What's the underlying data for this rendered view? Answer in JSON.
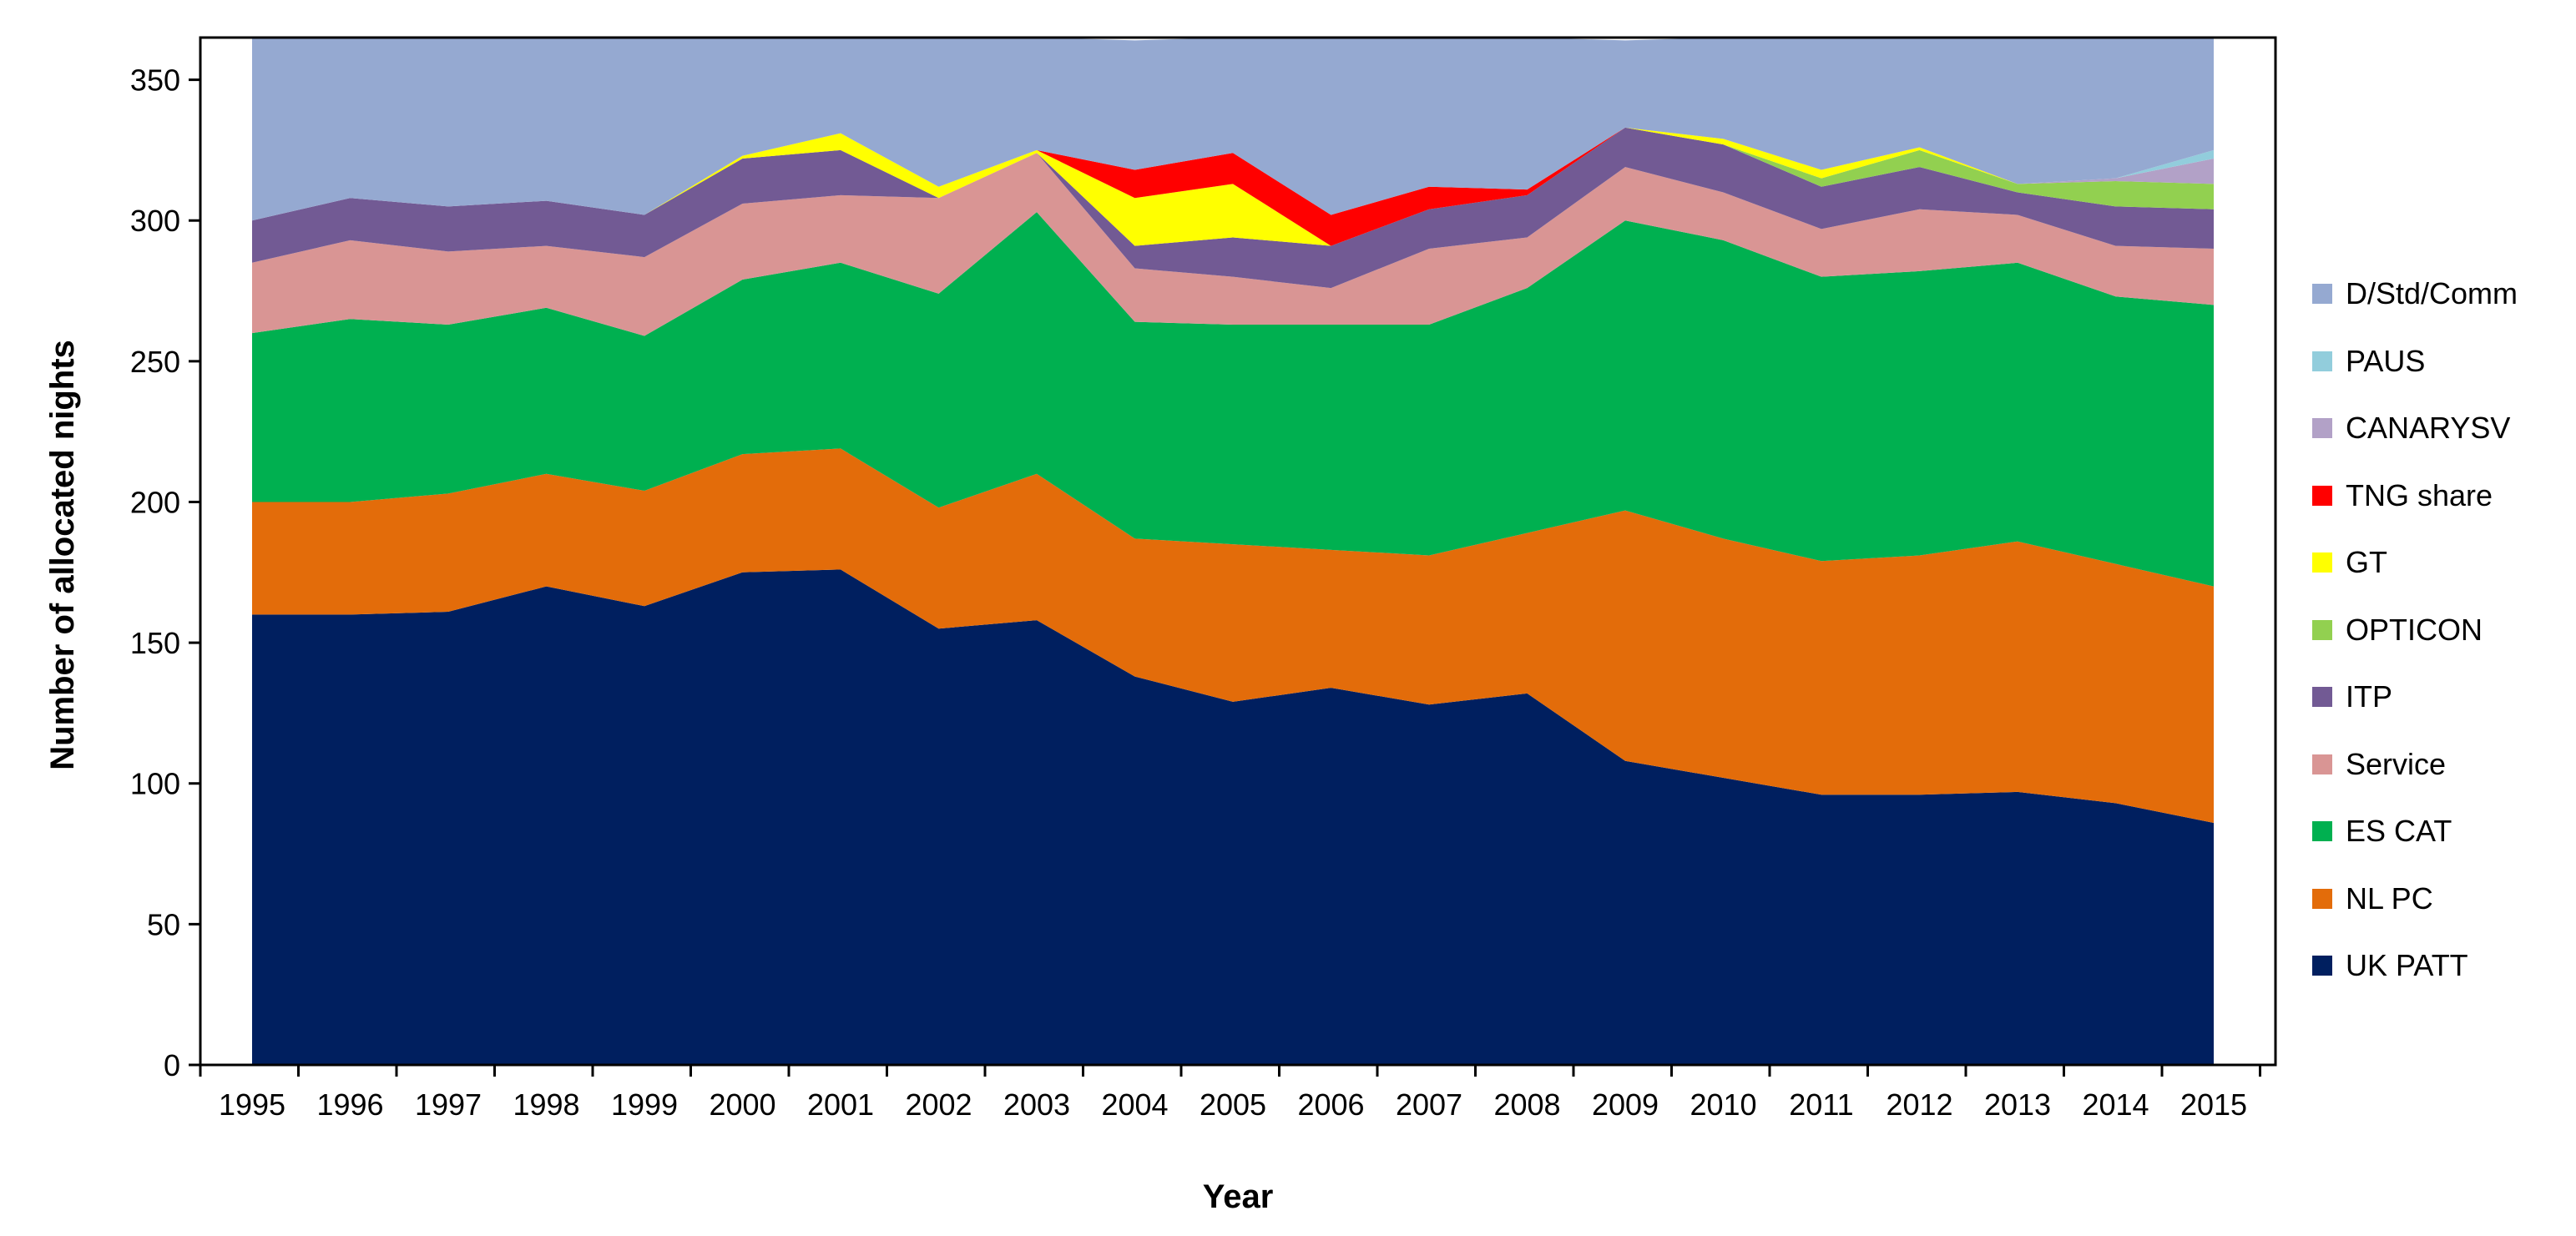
{
  "chart_data": {
    "type": "area",
    "stacked": true,
    "title": "",
    "xlabel": "Year",
    "ylabel": "Number of allocated nights",
    "ylim": [
      0,
      365
    ],
    "yticks": [
      0,
      50,
      100,
      150,
      200,
      250,
      300,
      350
    ],
    "grid": false,
    "legend_position": "right",
    "x": [
      "1995",
      "1996",
      "1997",
      "1998",
      "1999",
      "2000",
      "2001",
      "2002",
      "2003",
      "2004",
      "2005",
      "2006",
      "2007",
      "2008",
      "2009",
      "2010",
      "2011",
      "2012",
      "2013",
      "2014",
      "2015"
    ],
    "series": [
      {
        "name": "UK PATT",
        "color": "#001F5F",
        "values": [
          160,
          160,
          161,
          170,
          163,
          175,
          176,
          155,
          158,
          138,
          129,
          134,
          128,
          132,
          108,
          102,
          96,
          96,
          97,
          93,
          86
        ]
      },
      {
        "name": "NL PC",
        "color": "#E36C0A",
        "values": [
          40,
          40,
          42,
          40,
          41,
          42,
          43,
          43,
          52,
          49,
          56,
          49,
          53,
          57,
          89,
          85,
          83,
          85,
          89,
          85,
          84
        ]
      },
      {
        "name": "ES CAT",
        "color": "#00B050",
        "values": [
          60,
          65,
          60,
          59,
          55,
          62,
          66,
          76,
          93,
          77,
          78,
          80,
          82,
          87,
          103,
          106,
          101,
          101,
          99,
          95,
          100
        ]
      },
      {
        "name": "Service",
        "color": "#D99594",
        "values": [
          25,
          28,
          26,
          22,
          28,
          27,
          24,
          34,
          21,
          19,
          17,
          13,
          27,
          18,
          19,
          17,
          17,
          22,
          17,
          18,
          20
        ]
      },
      {
        "name": "ITP",
        "color": "#725A94",
        "values": [
          15,
          15,
          16,
          16,
          15,
          16,
          16,
          0,
          0,
          8,
          14,
          15,
          14,
          15,
          14,
          17,
          15,
          15,
          8,
          14,
          14
        ]
      },
      {
        "name": "OPTICON",
        "color": "#92D050",
        "values": [
          0,
          0,
          0,
          0,
          0,
          0,
          0,
          0,
          0,
          0,
          0,
          0,
          0,
          0,
          0,
          0,
          3,
          6,
          3,
          9,
          9
        ]
      },
      {
        "name": "GT",
        "color": "#FFFF00",
        "values": [
          0,
          0,
          0,
          0,
          0,
          1,
          6,
          4,
          1,
          17,
          19,
          0,
          0,
          0,
          0,
          2,
          3,
          1,
          0,
          0,
          0
        ]
      },
      {
        "name": "TNG share",
        "color": "#FF0000",
        "values": [
          0,
          0,
          0,
          0,
          0,
          0,
          0,
          0,
          0,
          10,
          11,
          11,
          8,
          2,
          0,
          0,
          0,
          0,
          0,
          0,
          0
        ]
      },
      {
        "name": "CANARYSV",
        "color": "#B2A1C7",
        "values": [
          0,
          0,
          0,
          0,
          0,
          0,
          0,
          0,
          0,
          0,
          0,
          0,
          0,
          0,
          0,
          0,
          0,
          0,
          0,
          1,
          9
        ]
      },
      {
        "name": "PAUS",
        "color": "#92CDDC",
        "values": [
          0,
          0,
          0,
          0,
          0,
          0,
          0,
          0,
          0,
          0,
          0,
          0,
          0,
          0,
          0,
          0,
          0,
          0,
          0,
          0,
          3
        ]
      },
      {
        "name": "D/Std/Comm",
        "color": "#95A9D1",
        "values": [
          65,
          57,
          60,
          58,
          63,
          42,
          34,
          53,
          40,
          46,
          41,
          63,
          53,
          56,
          31,
          38,
          47,
          40,
          52,
          50,
          40
        ]
      }
    ]
  }
}
